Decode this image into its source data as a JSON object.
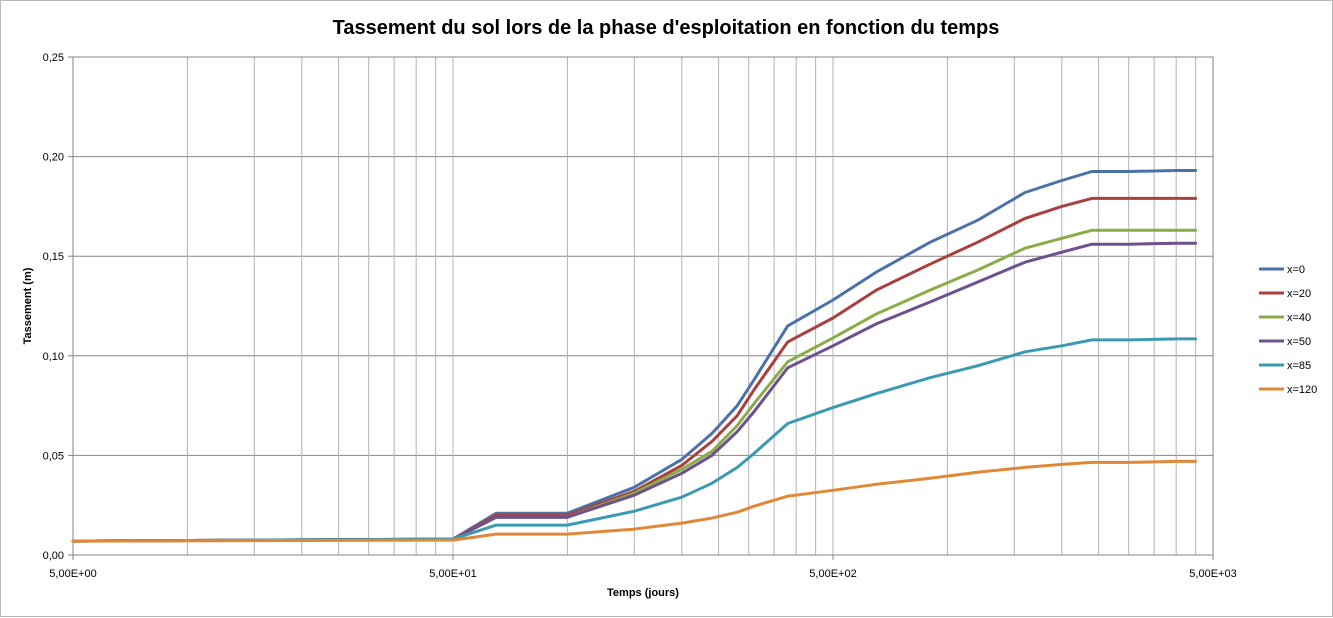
{
  "chart_data": {
    "type": "line",
    "title": "Tassement du sol lors de la phase d'esploitation en fonction du temps",
    "xlabel": "Temps (jours)",
    "ylabel": "Tassement  (m)",
    "x_scale": "log",
    "xlim": [
      5,
      5000
    ],
    "ylim": [
      0,
      0.25
    ],
    "x_tick_labels": [
      "5,00E+00",
      "5,00E+01",
      "5,00E+02",
      "5,00E+03"
    ],
    "x_tick_values": [
      5,
      50,
      500,
      5000
    ],
    "y_tick_labels": [
      "0,00",
      "0,05",
      "0,10",
      "0,15",
      "0,20",
      "0,25"
    ],
    "y_tick_values": [
      0,
      0.05,
      0.1,
      0.15,
      0.2,
      0.25
    ],
    "grid": true,
    "legend_position": "right",
    "x": [
      5,
      50,
      65,
      100,
      150,
      200,
      240,
      280,
      310,
      380,
      500,
      650,
      900,
      1200,
      1600,
      2000,
      2400,
      3000,
      4000,
      4500
    ],
    "series": [
      {
        "name": "x=0",
        "color": "#4a72a9",
        "values": [
          0.007,
          0.008,
          0.021,
          0.021,
          0.034,
          0.048,
          0.061,
          0.075,
          0.088,
          0.115,
          0.128,
          0.142,
          0.157,
          0.168,
          0.182,
          0.188,
          0.1925,
          0.1925,
          0.193,
          0.193
        ]
      },
      {
        "name": "x=20",
        "color": "#a9403e",
        "values": [
          0.007,
          0.008,
          0.02,
          0.02,
          0.032,
          0.045,
          0.057,
          0.07,
          0.083,
          0.107,
          0.119,
          0.133,
          0.146,
          0.157,
          0.169,
          0.175,
          0.179,
          0.179,
          0.179,
          0.179
        ]
      },
      {
        "name": "x=40",
        "color": "#8bac49",
        "values": [
          0.007,
          0.008,
          0.019,
          0.019,
          0.031,
          0.043,
          0.052,
          0.065,
          0.076,
          0.097,
          0.109,
          0.121,
          0.133,
          0.143,
          0.154,
          0.159,
          0.163,
          0.163,
          0.163,
          0.163
        ]
      },
      {
        "name": "x=50",
        "color": "#6d508d",
        "values": [
          0.007,
          0.008,
          0.019,
          0.019,
          0.03,
          0.041,
          0.05,
          0.062,
          0.072,
          0.094,
          0.105,
          0.116,
          0.127,
          0.137,
          0.147,
          0.152,
          0.156,
          0.156,
          0.1565,
          0.1565
        ]
      },
      {
        "name": "x=85",
        "color": "#3b9ab2",
        "values": [
          0.007,
          0.008,
          0.015,
          0.015,
          0.022,
          0.029,
          0.036,
          0.044,
          0.051,
          0.066,
          0.074,
          0.081,
          0.089,
          0.095,
          0.102,
          0.105,
          0.108,
          0.108,
          0.1085,
          0.1085
        ]
      },
      {
        "name": "x=120",
        "color": "#e08837",
        "values": [
          0.007,
          0.0075,
          0.0105,
          0.0105,
          0.013,
          0.016,
          0.0185,
          0.0215,
          0.0245,
          0.0295,
          0.0325,
          0.0355,
          0.0385,
          0.0415,
          0.044,
          0.0455,
          0.0465,
          0.0465,
          0.047,
          0.047
        ]
      }
    ]
  }
}
